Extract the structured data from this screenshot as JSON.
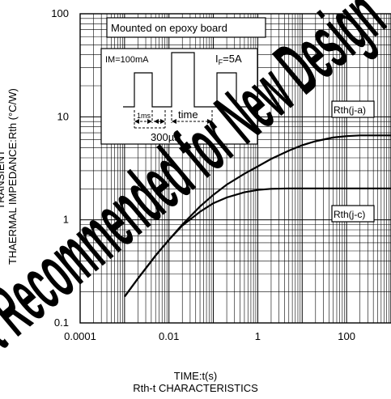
{
  "chart_data": {
    "type": "line",
    "title": "Rth-t CHARACTERISTICS",
    "xlabel": "TIME:t(s)",
    "ylabel_lines": [
      "TRANSIENT",
      "THAERMAL IMPEDANCE:Rth  (°C/W)"
    ],
    "x_scale": "log",
    "y_scale": "log",
    "xlim": [
      0.0001,
      1000
    ],
    "ylim": [
      0.1,
      100
    ],
    "x_ticks": [
      0.0001,
      0.01,
      1,
      100
    ],
    "x_tick_labels": [
      "0.0001",
      "0.01",
      "1",
      "100"
    ],
    "y_ticks": [
      0.1,
      1,
      10,
      100
    ],
    "y_tick_labels": [
      "0.1",
      "1",
      "10",
      "100"
    ],
    "grid": true,
    "watermark": "Not Recommended for New Design",
    "annotations": {
      "box_title": "Mounted on epoxy board",
      "pulse_left_label": "IM=100mA",
      "pulse_right_label_main": "I",
      "pulse_right_label_sub": "F",
      "pulse_right_label_value": "=5A",
      "dim_1ms": "1ms",
      "dim_time": "time",
      "dim_300us": "300µs"
    },
    "series": [
      {
        "name": "Rth(j-a)",
        "x": [
          0.001,
          0.002,
          0.005,
          0.01,
          0.02,
          0.05,
          0.1,
          0.2,
          0.5,
          1,
          2,
          5,
          10,
          20,
          50,
          100,
          200,
          500,
          1000
        ],
        "y": [
          0.18,
          0.27,
          0.45,
          0.64,
          0.9,
          1.35,
          1.75,
          2.2,
          2.8,
          3.3,
          3.9,
          4.7,
          5.3,
          5.8,
          6.3,
          6.5,
          6.6,
          6.6,
          6.6
        ]
      },
      {
        "name": "Rth(j-c)",
        "x": [
          0.001,
          0.002,
          0.005,
          0.01,
          0.02,
          0.05,
          0.1,
          0.2,
          0.5,
          1,
          2,
          5,
          10,
          20,
          50,
          100,
          200,
          500,
          1000
        ],
        "y": [
          0.18,
          0.27,
          0.45,
          0.64,
          0.88,
          1.2,
          1.45,
          1.65,
          1.85,
          1.95,
          2.0,
          2.02,
          2.02,
          2.02,
          2.02,
          2.02,
          2.02,
          2.02,
          2.02
        ]
      }
    ]
  }
}
